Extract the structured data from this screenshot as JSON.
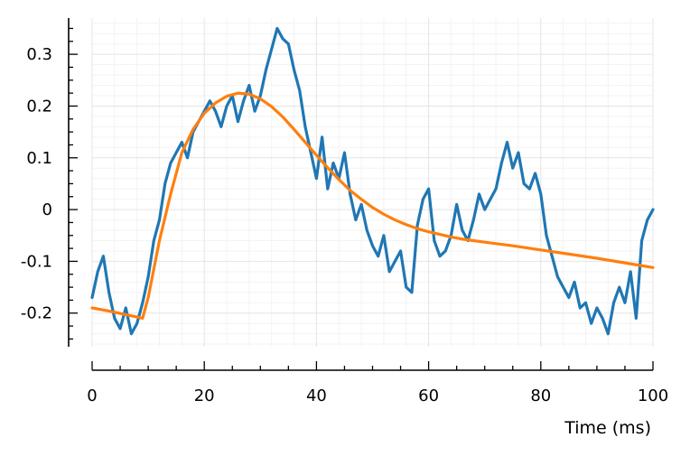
{
  "chart_data": {
    "type": "line",
    "xlabel": "Time (ms)",
    "ylabel": "",
    "xlim": [
      0,
      100
    ],
    "ylim": [
      -0.265,
      0.37
    ],
    "grid": true,
    "xticks": [
      0,
      20,
      40,
      60,
      80,
      100
    ],
    "xtick_labels": [
      "0",
      "20",
      "40",
      "60",
      "80",
      "100"
    ],
    "yticks": [
      -0.2,
      -0.1,
      0,
      0.1,
      0.2,
      0.3
    ],
    "ytick_labels": [
      "-0.2",
      "-0.1",
      "0",
      "0.1",
      "0.2",
      "0.3"
    ],
    "series": [
      {
        "color": "#1f77b4",
        "x": [
          0,
          1,
          2,
          3,
          4,
          5,
          6,
          7,
          8,
          9,
          10,
          11,
          12,
          13,
          14,
          15,
          16,
          17,
          18,
          19,
          20,
          21,
          22,
          23,
          24,
          25,
          26,
          27,
          28,
          29,
          30,
          31,
          32,
          33,
          34,
          35,
          36,
          37,
          38,
          39,
          40,
          41,
          42,
          43,
          44,
          45,
          46,
          47,
          48,
          49,
          50,
          51,
          52,
          53,
          54,
          55,
          56,
          57,
          58,
          59,
          60,
          61,
          62,
          63,
          64,
          65,
          66,
          67,
          68,
          69,
          70,
          71,
          72,
          73,
          74,
          75,
          76,
          77,
          78,
          79,
          80,
          81,
          82,
          83,
          84,
          85,
          86,
          87,
          88,
          89,
          90,
          91,
          92,
          93,
          94,
          95,
          96,
          97,
          98,
          99,
          100
        ],
        "y": [
          -0.17,
          -0.12,
          -0.09,
          -0.16,
          -0.21,
          -0.23,
          -0.19,
          -0.24,
          -0.22,
          -0.18,
          -0.13,
          -0.06,
          -0.02,
          0.05,
          0.09,
          0.11,
          0.13,
          0.1,
          0.15,
          0.17,
          0.19,
          0.21,
          0.19,
          0.16,
          0.2,
          0.22,
          0.17,
          0.21,
          0.24,
          0.19,
          0.22,
          0.27,
          0.31,
          0.35,
          0.33,
          0.32,
          0.27,
          0.23,
          0.16,
          0.11,
          0.06,
          0.14,
          0.04,
          0.09,
          0.06,
          0.11,
          0.03,
          -0.02,
          0.01,
          -0.04,
          -0.07,
          -0.09,
          -0.05,
          -0.12,
          -0.1,
          -0.08,
          -0.15,
          -0.16,
          -0.03,
          0.02,
          0.04,
          -0.06,
          -0.09,
          -0.08,
          -0.05,
          0.01,
          -0.04,
          -0.06,
          -0.02,
          0.03,
          0.0,
          0.02,
          0.04,
          0.09,
          0.13,
          0.08,
          0.11,
          0.05,
          0.04,
          0.07,
          0.03,
          -0.05,
          -0.09,
          -0.13,
          -0.15,
          -0.17,
          -0.14,
          -0.19,
          -0.18,
          -0.22,
          -0.19,
          -0.21,
          -0.24,
          -0.18,
          -0.15,
          -0.18,
          -0.12,
          -0.21,
          -0.06,
          -0.02,
          0.0
        ]
      },
      {
        "color": "#ff7f0e",
        "x": [
          0,
          3,
          6,
          9,
          10,
          12,
          14,
          16,
          18,
          20,
          22,
          24,
          26,
          28,
          30,
          32,
          34,
          36,
          38,
          40,
          42,
          44,
          46,
          48,
          50,
          52,
          54,
          56,
          58,
          60,
          62,
          64,
          66,
          68,
          70,
          75,
          80,
          85,
          90,
          95,
          100
        ],
        "y": [
          -0.19,
          -0.196,
          -0.203,
          -0.21,
          -0.17,
          -0.06,
          0.03,
          0.11,
          0.155,
          0.186,
          0.206,
          0.219,
          0.225,
          0.223,
          0.214,
          0.199,
          0.179,
          0.155,
          0.13,
          0.105,
          0.081,
          0.058,
          0.037,
          0.02,
          0.004,
          -0.009,
          -0.02,
          -0.029,
          -0.037,
          -0.043,
          -0.048,
          -0.053,
          -0.057,
          -0.06,
          -0.063,
          -0.07,
          -0.078,
          -0.086,
          -0.094,
          -0.103,
          -0.112
        ]
      }
    ]
  }
}
